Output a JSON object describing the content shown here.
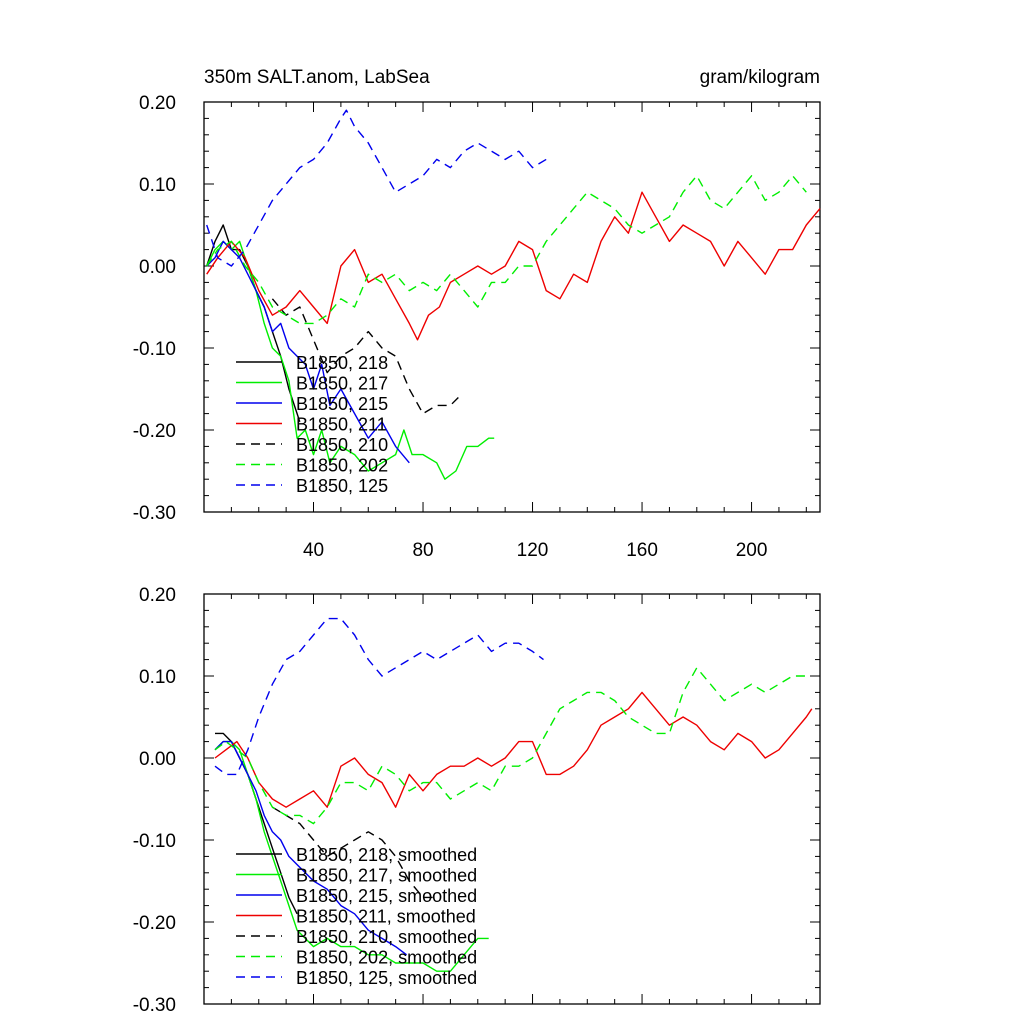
{
  "chart_data": [
    {
      "type": "line",
      "title_left": "350m SALT.anom, LabSea",
      "title_right": "gram/kilogram",
      "xlabel": "",
      "ylabel": "",
      "xlim": [
        0,
        225
      ],
      "ylim": [
        -0.3,
        0.2
      ],
      "x_ticks": [
        "40",
        "80",
        "120",
        "160",
        "200"
      ],
      "y_ticks": [
        "0.20",
        "0.10",
        "0.00",
        "-0.10",
        "-0.20",
        "-0.30"
      ],
      "legend_position": "lower-left",
      "series": [
        {
          "name": "B1850, 218",
          "color": "#000000",
          "dash": false,
          "x": [
            1,
            4,
            7,
            10,
            13,
            16,
            19,
            22,
            25,
            28,
            31,
            34,
            35
          ],
          "y": [
            0.0,
            0.03,
            0.05,
            0.02,
            0.02,
            0.0,
            -0.03,
            -0.05,
            -0.08,
            -0.11,
            -0.15,
            -0.18,
            -0.19
          ]
        },
        {
          "name": "B1850, 217",
          "color": "#00ee00",
          "dash": false,
          "x": [
            1,
            4,
            7,
            10,
            13,
            16,
            19,
            22,
            25,
            28,
            31,
            34,
            37,
            40,
            43,
            46,
            50,
            55,
            60,
            65,
            70,
            73,
            76,
            80,
            85,
            88,
            92,
            96,
            100,
            104,
            106
          ],
          "y": [
            0.0,
            0.02,
            0.03,
            0.02,
            0.03,
            0.0,
            -0.03,
            -0.07,
            -0.1,
            -0.11,
            -0.14,
            -0.21,
            -0.2,
            -0.23,
            -0.2,
            -0.24,
            -0.22,
            -0.23,
            -0.25,
            -0.24,
            -0.23,
            -0.2,
            -0.23,
            -0.23,
            -0.24,
            -0.26,
            -0.25,
            -0.22,
            -0.22,
            -0.21,
            -0.21
          ]
        },
        {
          "name": "B1850, 215",
          "color": "#0000ee",
          "dash": false,
          "x": [
            1,
            4,
            7,
            10,
            13,
            16,
            19,
            22,
            25,
            28,
            31,
            34,
            37,
            40,
            43,
            46,
            50,
            55,
            60,
            65,
            70,
            75
          ],
          "y": [
            0.0,
            0.01,
            0.03,
            0.02,
            0.01,
            -0.01,
            -0.03,
            -0.05,
            -0.08,
            -0.07,
            -0.1,
            -0.11,
            -0.12,
            -0.15,
            -0.12,
            -0.17,
            -0.15,
            -0.18,
            -0.21,
            -0.19,
            -0.22,
            -0.24
          ]
        },
        {
          "name": "B1850, 211",
          "color": "#ee0000",
          "dash": false,
          "x": [
            1,
            5,
            10,
            15,
            20,
            25,
            30,
            35,
            40,
            45,
            50,
            55,
            60,
            65,
            70,
            75,
            78,
            82,
            86,
            90,
            95,
            100,
            105,
            110,
            115,
            120,
            125,
            130,
            135,
            140,
            145,
            150,
            155,
            160,
            165,
            170,
            175,
            180,
            185,
            190,
            195,
            200,
            205,
            210,
            215,
            220,
            225
          ],
          "y": [
            -0.01,
            0.01,
            0.03,
            0.01,
            -0.03,
            -0.06,
            -0.05,
            -0.03,
            -0.05,
            -0.07,
            0.0,
            0.02,
            -0.02,
            -0.01,
            -0.04,
            -0.07,
            -0.09,
            -0.06,
            -0.05,
            -0.02,
            -0.01,
            0.0,
            -0.01,
            0.0,
            0.03,
            0.02,
            -0.03,
            -0.04,
            -0.01,
            -0.02,
            0.03,
            0.06,
            0.04,
            0.09,
            0.06,
            0.03,
            0.05,
            0.04,
            0.03,
            0.0,
            0.03,
            0.01,
            -0.01,
            0.02,
            0.02,
            0.05,
            0.07
          ]
        },
        {
          "name": "B1850, 210",
          "color": "#000000",
          "dash": true,
          "x": [
            25,
            30,
            35,
            40,
            45,
            50,
            55,
            60,
            65,
            70,
            75,
            80,
            85,
            90,
            93
          ],
          "y": [
            -0.04,
            -0.06,
            -0.05,
            -0.09,
            -0.13,
            -0.11,
            -0.1,
            -0.08,
            -0.1,
            -0.11,
            -0.15,
            -0.18,
            -0.17,
            -0.17,
            -0.16
          ]
        },
        {
          "name": "B1850, 202",
          "color": "#00ee00",
          "dash": true,
          "x": [
            1,
            5,
            10,
            15,
            20,
            25,
            30,
            35,
            40,
            45,
            50,
            55,
            60,
            65,
            70,
            75,
            80,
            85,
            90,
            95,
            100,
            105,
            110,
            115,
            120,
            125,
            130,
            135,
            140,
            145,
            150,
            155,
            160,
            165,
            170,
            175,
            180,
            185,
            190,
            195,
            200,
            205,
            210,
            215,
            220
          ],
          "y": [
            0.0,
            0.02,
            0.03,
            0.0,
            -0.02,
            -0.05,
            -0.06,
            -0.07,
            -0.07,
            -0.06,
            -0.04,
            -0.05,
            -0.01,
            -0.02,
            -0.01,
            -0.03,
            -0.02,
            -0.03,
            -0.01,
            -0.03,
            -0.05,
            -0.02,
            -0.02,
            0.0,
            0.0,
            0.03,
            0.05,
            0.07,
            0.09,
            0.08,
            0.07,
            0.05,
            0.04,
            0.05,
            0.06,
            0.09,
            0.11,
            0.08,
            0.07,
            0.09,
            0.11,
            0.08,
            0.09,
            0.11,
            0.09
          ]
        },
        {
          "name": "B1850, 125",
          "color": "#0000ee",
          "dash": true,
          "x": [
            1,
            5,
            10,
            15,
            20,
            25,
            30,
            35,
            40,
            45,
            50,
            52,
            55,
            60,
            65,
            70,
            75,
            80,
            85,
            90,
            95,
            100,
            105,
            110,
            115,
            120,
            125
          ],
          "y": [
            0.05,
            0.01,
            0.0,
            0.02,
            0.05,
            0.08,
            0.1,
            0.12,
            0.13,
            0.15,
            0.18,
            0.19,
            0.17,
            0.15,
            0.12,
            0.09,
            0.1,
            0.11,
            0.13,
            0.12,
            0.14,
            0.15,
            0.14,
            0.13,
            0.14,
            0.12,
            0.13
          ]
        }
      ]
    },
    {
      "type": "line",
      "xlabel": "",
      "ylabel": "",
      "xlim": [
        0,
        225
      ],
      "ylim": [
        -0.3,
        0.2
      ],
      "y_ticks": [
        "0.20",
        "0.10",
        "0.00",
        "-0.10",
        "-0.20",
        "-0.30"
      ],
      "legend_position": "lower-left",
      "series": [
        {
          "name": "B1850, 218, smoothed",
          "color": "#000000",
          "dash": false,
          "x": [
            4,
            7,
            10,
            13,
            16,
            19,
            22,
            25,
            28,
            31,
            34
          ],
          "y": [
            0.03,
            0.03,
            0.02,
            0.0,
            -0.02,
            -0.05,
            -0.08,
            -0.11,
            -0.14,
            -0.17,
            -0.19
          ]
        },
        {
          "name": "B1850, 217, smoothed",
          "color": "#00ee00",
          "dash": false,
          "x": [
            4,
            7,
            10,
            13,
            16,
            19,
            22,
            25,
            28,
            31,
            34,
            37,
            40,
            45,
            50,
            55,
            60,
            65,
            70,
            75,
            80,
            85,
            90,
            95,
            100,
            104
          ],
          "y": [
            0.01,
            0.02,
            0.02,
            0.01,
            -0.02,
            -0.05,
            -0.09,
            -0.12,
            -0.15,
            -0.18,
            -0.21,
            -0.22,
            -0.23,
            -0.22,
            -0.23,
            -0.23,
            -0.24,
            -0.24,
            -0.25,
            -0.25,
            -0.25,
            -0.26,
            -0.26,
            -0.24,
            -0.22,
            -0.22
          ]
        },
        {
          "name": "B1850, 215, smoothed",
          "color": "#0000ee",
          "dash": false,
          "x": [
            4,
            7,
            10,
            13,
            16,
            19,
            22,
            25,
            28,
            31,
            34,
            37,
            40,
            45,
            50,
            55,
            60,
            65,
            70,
            74
          ],
          "y": [
            0.01,
            0.02,
            0.02,
            0.0,
            -0.02,
            -0.04,
            -0.07,
            -0.09,
            -0.1,
            -0.12,
            -0.13,
            -0.14,
            -0.15,
            -0.16,
            -0.18,
            -0.19,
            -0.21,
            -0.22,
            -0.23,
            -0.24
          ]
        },
        {
          "name": "B1850, 211, smoothed",
          "color": "#ee0000",
          "dash": false,
          "x": [
            4,
            8,
            12,
            16,
            20,
            25,
            30,
            35,
            40,
            45,
            50,
            55,
            60,
            65,
            70,
            75,
            80,
            85,
            90,
            95,
            100,
            105,
            110,
            115,
            120,
            125,
            130,
            135,
            140,
            145,
            150,
            155,
            160,
            165,
            170,
            175,
            180,
            185,
            190,
            195,
            200,
            205,
            210,
            215,
            220,
            222
          ],
          "y": [
            0.0,
            0.01,
            0.02,
            0.0,
            -0.03,
            -0.05,
            -0.06,
            -0.05,
            -0.04,
            -0.06,
            -0.01,
            0.0,
            -0.02,
            -0.03,
            -0.06,
            -0.02,
            -0.04,
            -0.02,
            -0.01,
            -0.01,
            0.0,
            -0.01,
            0.0,
            0.02,
            0.02,
            -0.02,
            -0.02,
            -0.01,
            0.01,
            0.04,
            0.05,
            0.06,
            0.08,
            0.06,
            0.04,
            0.05,
            0.04,
            0.02,
            0.01,
            0.03,
            0.02,
            0.0,
            0.01,
            0.03,
            0.05,
            0.06
          ]
        },
        {
          "name": "B1850, 210, smoothed",
          "color": "#000000",
          "dash": true,
          "x": [
            25,
            30,
            35,
            40,
            45,
            50,
            55,
            60,
            65,
            70,
            75,
            80,
            85
          ],
          "y": [
            -0.06,
            -0.07,
            -0.08,
            -0.1,
            -0.12,
            -0.11,
            -0.1,
            -0.09,
            -0.1,
            -0.12,
            -0.15,
            -0.17,
            -0.17
          ]
        },
        {
          "name": "B1850, 202, smoothed",
          "color": "#00ee00",
          "dash": true,
          "x": [
            4,
            8,
            12,
            16,
            20,
            25,
            30,
            35,
            40,
            45,
            50,
            55,
            60,
            65,
            70,
            75,
            80,
            85,
            90,
            95,
            100,
            105,
            110,
            115,
            120,
            125,
            130,
            135,
            140,
            145,
            150,
            155,
            160,
            165,
            170,
            175,
            180,
            185,
            190,
            195,
            200,
            205,
            210,
            215,
            220
          ],
          "y": [
            0.01,
            0.02,
            0.01,
            0.0,
            -0.03,
            -0.06,
            -0.07,
            -0.07,
            -0.08,
            -0.06,
            -0.03,
            -0.03,
            -0.04,
            -0.01,
            -0.02,
            -0.04,
            -0.03,
            -0.03,
            -0.05,
            -0.04,
            -0.03,
            -0.04,
            -0.01,
            -0.01,
            0.0,
            0.03,
            0.06,
            0.07,
            0.08,
            0.08,
            0.07,
            0.05,
            0.04,
            0.03,
            0.03,
            0.08,
            0.11,
            0.09,
            0.07,
            0.08,
            0.09,
            0.08,
            0.09,
            0.1,
            0.1
          ]
        },
        {
          "name": "B1850, 125, smoothed",
          "color": "#0000ee",
          "dash": true,
          "x": [
            4,
            8,
            12,
            16,
            20,
            25,
            30,
            35,
            40,
            45,
            50,
            55,
            60,
            65,
            70,
            75,
            80,
            85,
            90,
            95,
            100,
            105,
            110,
            115,
            120,
            124
          ],
          "y": [
            -0.01,
            -0.02,
            -0.02,
            0.01,
            0.05,
            0.09,
            0.12,
            0.13,
            0.15,
            0.17,
            0.17,
            0.15,
            0.12,
            0.1,
            0.11,
            0.12,
            0.13,
            0.12,
            0.13,
            0.14,
            0.15,
            0.13,
            0.14,
            0.14,
            0.13,
            0.12
          ]
        }
      ]
    }
  ]
}
